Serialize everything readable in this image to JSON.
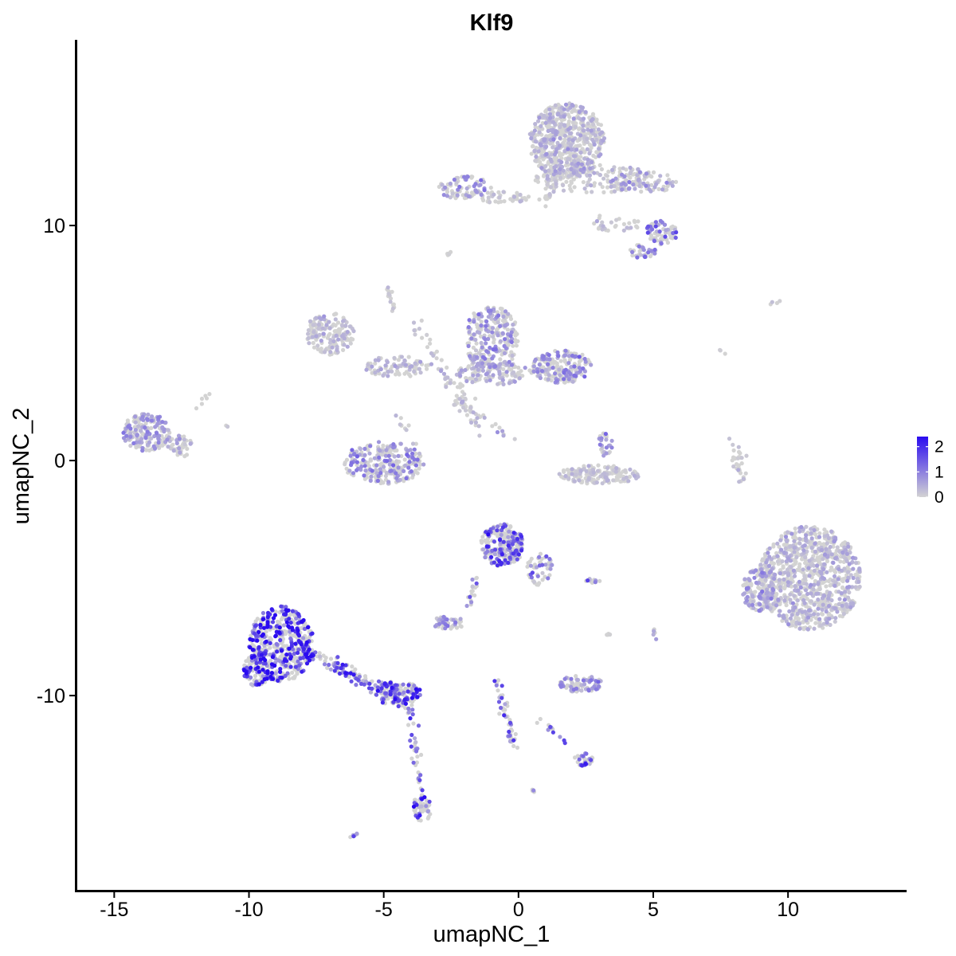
{
  "chart_data": {
    "type": "scatter",
    "title": "Klf9",
    "xlabel": "umapNC_1",
    "ylabel": "umapNC_2",
    "xlim": [
      -16.4,
      14.4
    ],
    "ylim": [
      -18.3,
      17.9
    ],
    "x_ticks": [
      -15,
      -10,
      -5,
      0,
      5,
      10
    ],
    "x_tick_labels": [
      "-15",
      "-10",
      "-5",
      "0",
      "5",
      "10"
    ],
    "y_ticks": [
      -10,
      0,
      10
    ],
    "y_tick_labels": [
      "-10",
      "0",
      "10"
    ],
    "grid": false,
    "legend": {
      "placement": "right",
      "type": "colorbar",
      "min": 0,
      "max": 2.4,
      "ticks": [
        0,
        1,
        2
      ],
      "tick_labels": [
        "0",
        "1",
        "2"
      ],
      "low_color": "#D3D3D3",
      "high_color": "#2A0BF0"
    },
    "clusters": [
      {
        "cx": 1.8,
        "cy": 13.6,
        "rx": 1.4,
        "ry": 1.6,
        "n": 600,
        "expr": 0.28
      },
      {
        "cx": 2.8,
        "cy": 12.0,
        "rx": 2.2,
        "ry": 0.6,
        "n": 160,
        "expr": 0.22
      },
      {
        "cx": 4.6,
        "cy": 11.8,
        "rx": 1.3,
        "ry": 0.5,
        "n": 80,
        "expr": 0.4
      },
      {
        "cx": -2.0,
        "cy": 11.6,
        "rx": 1.0,
        "ry": 0.5,
        "n": 80,
        "expr": 0.55
      },
      {
        "cx": -0.6,
        "cy": 11.2,
        "rx": 1.0,
        "ry": 0.25,
        "n": 40,
        "expr": 0.15
      },
      {
        "cx": 5.3,
        "cy": 9.7,
        "rx": 0.6,
        "ry": 0.5,
        "n": 70,
        "expr": 0.8
      },
      {
        "cx": 4.6,
        "cy": 8.9,
        "rx": 0.5,
        "ry": 0.3,
        "n": 35,
        "expr": 0.6
      },
      {
        "cx": 3.6,
        "cy": 10.1,
        "rx": 0.9,
        "ry": 0.5,
        "n": 30,
        "expr": 0.2
      },
      {
        "cx": -7.0,
        "cy": 5.4,
        "rx": 0.9,
        "ry": 0.9,
        "n": 160,
        "expr": 0.25
      },
      {
        "cx": -4.5,
        "cy": 4.0,
        "rx": 1.2,
        "ry": 0.45,
        "n": 90,
        "expr": 0.25
      },
      {
        "cx": -1.0,
        "cy": 5.2,
        "rx": 1.0,
        "ry": 1.4,
        "n": 260,
        "expr": 0.55
      },
      {
        "cx": 1.6,
        "cy": 4.0,
        "rx": 1.1,
        "ry": 0.7,
        "n": 200,
        "expr": 0.6
      },
      {
        "cx": -0.9,
        "cy": 3.7,
        "rx": 1.4,
        "ry": 0.5,
        "n": 120,
        "expr": 0.4
      },
      {
        "cx": -5.0,
        "cy": -0.1,
        "rx": 1.5,
        "ry": 0.9,
        "n": 260,
        "expr": 0.6
      },
      {
        "cx": -13.8,
        "cy": 1.2,
        "rx": 0.9,
        "ry": 0.8,
        "n": 190,
        "expr": 0.45
      },
      {
        "cx": -12.6,
        "cy": 0.6,
        "rx": 0.5,
        "ry": 0.5,
        "n": 40,
        "expr": 0.35
      },
      {
        "cx": 3.0,
        "cy": -0.6,
        "rx": 1.5,
        "ry": 0.4,
        "n": 170,
        "expr": 0.15
      },
      {
        "cx": 3.2,
        "cy": 0.7,
        "rx": 0.3,
        "ry": 0.5,
        "n": 25,
        "expr": 0.6
      },
      {
        "cx": 10.8,
        "cy": -5.0,
        "rx": 1.9,
        "ry": 2.2,
        "n": 950,
        "expr": 0.3
      },
      {
        "cx": 8.9,
        "cy": -5.5,
        "rx": 0.6,
        "ry": 0.9,
        "n": 140,
        "expr": 0.45
      },
      {
        "cx": 8.2,
        "cy": -0.2,
        "rx": 0.3,
        "ry": 0.8,
        "n": 20,
        "expr": 0.1
      },
      {
        "cx": -0.6,
        "cy": -3.6,
        "rx": 0.8,
        "ry": 0.9,
        "n": 230,
        "expr": 1.05
      },
      {
        "cx": 0.8,
        "cy": -4.6,
        "rx": 0.5,
        "ry": 0.7,
        "n": 50,
        "expr": 0.85
      },
      {
        "cx": -8.8,
        "cy": -7.8,
        "rx": 1.2,
        "ry": 1.6,
        "n": 480,
        "expr": 1.45
      },
      {
        "cx": -9.7,
        "cy": -8.9,
        "rx": 0.5,
        "ry": 0.7,
        "n": 110,
        "expr": 1.55
      },
      {
        "cx": -4.5,
        "cy": -9.9,
        "rx": 0.9,
        "ry": 0.5,
        "n": 120,
        "expr": 1.15
      },
      {
        "cx": -2.6,
        "cy": -6.9,
        "rx": 0.6,
        "ry": 0.3,
        "n": 50,
        "expr": 0.55
      },
      {
        "cx": 2.3,
        "cy": -9.5,
        "rx": 0.8,
        "ry": 0.35,
        "n": 80,
        "expr": 0.6
      },
      {
        "cx": 2.4,
        "cy": -12.7,
        "rx": 0.35,
        "ry": 0.3,
        "n": 30,
        "expr": 1.2
      },
      {
        "cx": -3.6,
        "cy": -14.8,
        "rx": 0.35,
        "ry": 0.6,
        "n": 45,
        "expr": 1.2
      },
      {
        "cx": 2.8,
        "cy": -5.1,
        "rx": 0.3,
        "ry": 0.1,
        "n": 12,
        "expr": 0.9
      }
    ],
    "trails": [
      {
        "from": [
          -8.0,
          -8.0
        ],
        "to": [
          -4.2,
          -10.3
        ],
        "n": 140,
        "spread": 0.3,
        "expr": 1.1
      },
      {
        "from": [
          -4.1,
          -10.3
        ],
        "to": [
          -3.5,
          -15.0
        ],
        "n": 50,
        "spread": 0.18,
        "expr": 1.0
      },
      {
        "from": [
          -0.8,
          -9.4
        ],
        "to": [
          -0.1,
          -12.3
        ],
        "n": 45,
        "spread": 0.15,
        "expr": 1.0
      },
      {
        "from": [
          -1.6,
          -5.0
        ],
        "to": [
          -1.8,
          -6.2
        ],
        "n": 18,
        "spread": 0.15,
        "expr": 0.9
      },
      {
        "from": [
          -3.8,
          6.0
        ],
        "to": [
          -2.0,
          2.0
        ],
        "n": 45,
        "spread": 0.25,
        "expr": 0.2
      },
      {
        "from": [
          -2.2,
          3.3
        ],
        "to": [
          -1.4,
          1.0
        ],
        "n": 25,
        "spread": 0.2,
        "expr": 0.15
      },
      {
        "from": [
          -2.3,
          2.6
        ],
        "to": [
          -0.2,
          0.8
        ],
        "n": 25,
        "spread": 0.2,
        "expr": 0.3
      },
      {
        "from": [
          -4.6,
          2.0
        ],
        "to": [
          -3.8,
          0.7
        ],
        "n": 10,
        "spread": 0.2,
        "expr": 0.2
      },
      {
        "from": [
          1.5,
          12.5
        ],
        "to": [
          1.0,
          11.0
        ],
        "n": 35,
        "spread": 0.25,
        "expr": 0.3
      },
      {
        "from": [
          -12.0,
          2.2
        ],
        "to": [
          -11.5,
          2.8
        ],
        "n": 6,
        "spread": 0.15,
        "expr": 0.2
      },
      {
        "from": [
          -4.9,
          7.4
        ],
        "to": [
          -4.6,
          6.4
        ],
        "n": 18,
        "spread": 0.1,
        "expr": 0.1
      },
      {
        "from": [
          0.6,
          -10.9
        ],
        "to": [
          2.2,
          -12.5
        ],
        "n": 12,
        "spread": 0.15,
        "expr": 0.9
      },
      {
        "from": [
          7.8,
          1.0
        ],
        "to": [
          8.3,
          -0.8
        ],
        "n": 12,
        "spread": 0.1,
        "expr": 0.1
      },
      {
        "from": [
          -6.2,
          -16.0
        ],
        "to": [
          -6.0,
          -15.9
        ],
        "n": 6,
        "spread": 0.05,
        "expr": 1.0
      },
      {
        "from": [
          0.5,
          -14.0
        ],
        "to": [
          0.6,
          -14.1
        ],
        "n": 5,
        "spread": 0.05,
        "expr": 0.9
      },
      {
        "from": [
          -2.7,
          8.7
        ],
        "to": [
          -2.5,
          8.9
        ],
        "n": 6,
        "spread": 0.05,
        "expr": 0.5
      },
      {
        "from": [
          9.3,
          6.7
        ],
        "to": [
          9.9,
          6.8
        ],
        "n": 4,
        "spread": 0.05,
        "expr": 0.05
      },
      {
        "from": [
          5.0,
          -7.1
        ],
        "to": [
          5.1,
          -7.6
        ],
        "n": 6,
        "spread": 0.05,
        "expr": 0.5
      },
      {
        "from": [
          3.3,
          -7.2
        ],
        "to": [
          3.4,
          -7.6
        ],
        "n": 4,
        "spread": 0.05,
        "expr": 0.3
      },
      {
        "from": [
          7.4,
          4.8
        ],
        "to": [
          7.7,
          4.5
        ],
        "n": 3,
        "spread": 0.05,
        "expr": 0.1
      },
      {
        "from": [
          -10.9,
          1.5
        ],
        "to": [
          -10.8,
          1.4
        ],
        "n": 2,
        "spread": 0.05,
        "expr": 0.2
      }
    ]
  }
}
